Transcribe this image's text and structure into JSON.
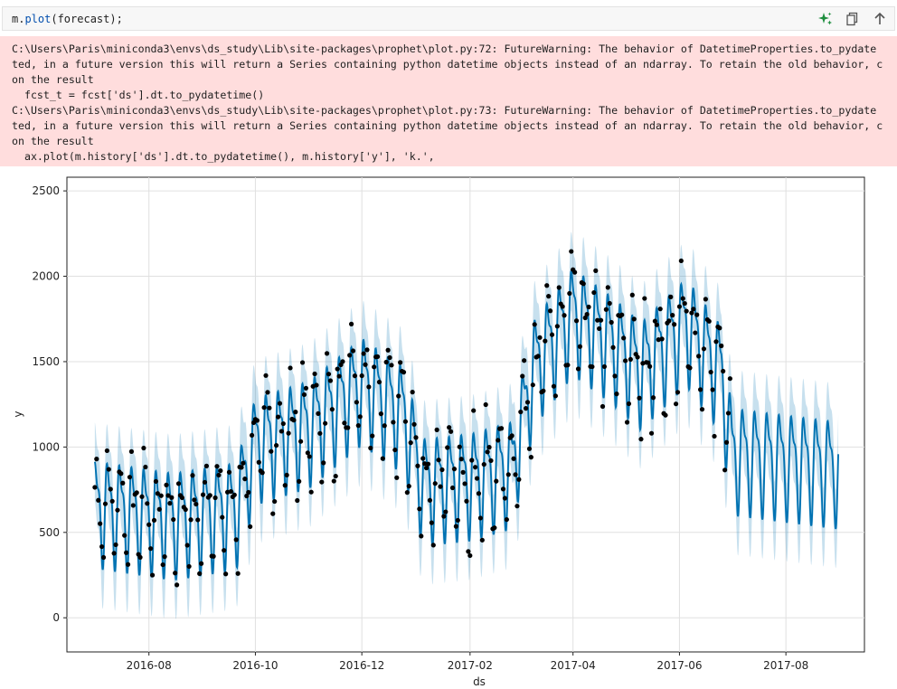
{
  "cell": {
    "code_var": "m.",
    "code_fn": "plot",
    "code_args": "(forecast);",
    "tools": [
      "sparkle-icon",
      "copy-icon",
      "arrow-up-icon"
    ]
  },
  "stderr_lines": [
    "C:\\Users\\Paris\\miniconda3\\envs\\ds_study\\Lib\\site-packages\\prophet\\plot.py:72: FutureWarning: The behavior of DatetimeProperties.to_pydate",
    "ted, in a future version this will return a Series containing python datetime objects instead of an ndarray. To retain the old behavior, c",
    "on the result",
    "  fcst_t = fcst['ds'].dt.to_pydatetime()",
    "C:\\Users\\Paris\\miniconda3\\envs\\ds_study\\Lib\\site-packages\\prophet\\plot.py:73: FutureWarning: The behavior of DatetimeProperties.to_pydate",
    "ted, in a future version this will return a Series containing python datetime objects instead of an ndarray. To retain the old behavior, c",
    "on the result",
    "  ax.plot(m.history['ds'].dt.to_pydatetime(), m.history['y'], 'k.',"
  ],
  "chart_data": {
    "type": "line",
    "xlabel": "ds",
    "ylabel": "y",
    "ylim": [
      -200,
      2580
    ],
    "xlim": [
      "2016-06-15",
      "2017-09-15"
    ],
    "yticks": [
      0,
      500,
      1000,
      1500,
      2000,
      2500
    ],
    "xticks": [
      "2016-08",
      "2016-10",
      "2016-12",
      "2017-02",
      "2017-04",
      "2017-06",
      "2017-08"
    ],
    "grid": true,
    "forecast_start": "2016-07-01",
    "forecast_end": "2017-08-31",
    "history_end": "2017-06-30",
    "trend_points": [
      [
        "2016-07-01",
        650
      ],
      [
        "2016-08-15",
        580
      ],
      [
        "2016-09-20",
        640
      ],
      [
        "2016-10-01",
        1020
      ],
      [
        "2016-11-01",
        1120
      ],
      [
        "2016-12-01",
        1370
      ],
      [
        "2016-12-25",
        1200
      ],
      [
        "2017-01-05",
        780
      ],
      [
        "2017-02-01",
        810
      ],
      [
        "2017-02-25",
        880
      ],
      [
        "2017-03-10",
        1480
      ],
      [
        "2017-04-01",
        1780
      ],
      [
        "2017-04-25",
        1600
      ],
      [
        "2017-05-10",
        1460
      ],
      [
        "2017-06-05",
        1720
      ],
      [
        "2017-06-25",
        1440
      ],
      [
        "2017-07-01",
        960
      ],
      [
        "2017-08-31",
        880
      ]
    ],
    "weekly_amplitude": 340,
    "band_half_width": 230,
    "forecast_color": "#0072b2",
    "band_color": "#0072b2",
    "point_color": "#000000",
    "history_points": {
      "count": 365,
      "noise": 150,
      "seed": 7
    }
  }
}
